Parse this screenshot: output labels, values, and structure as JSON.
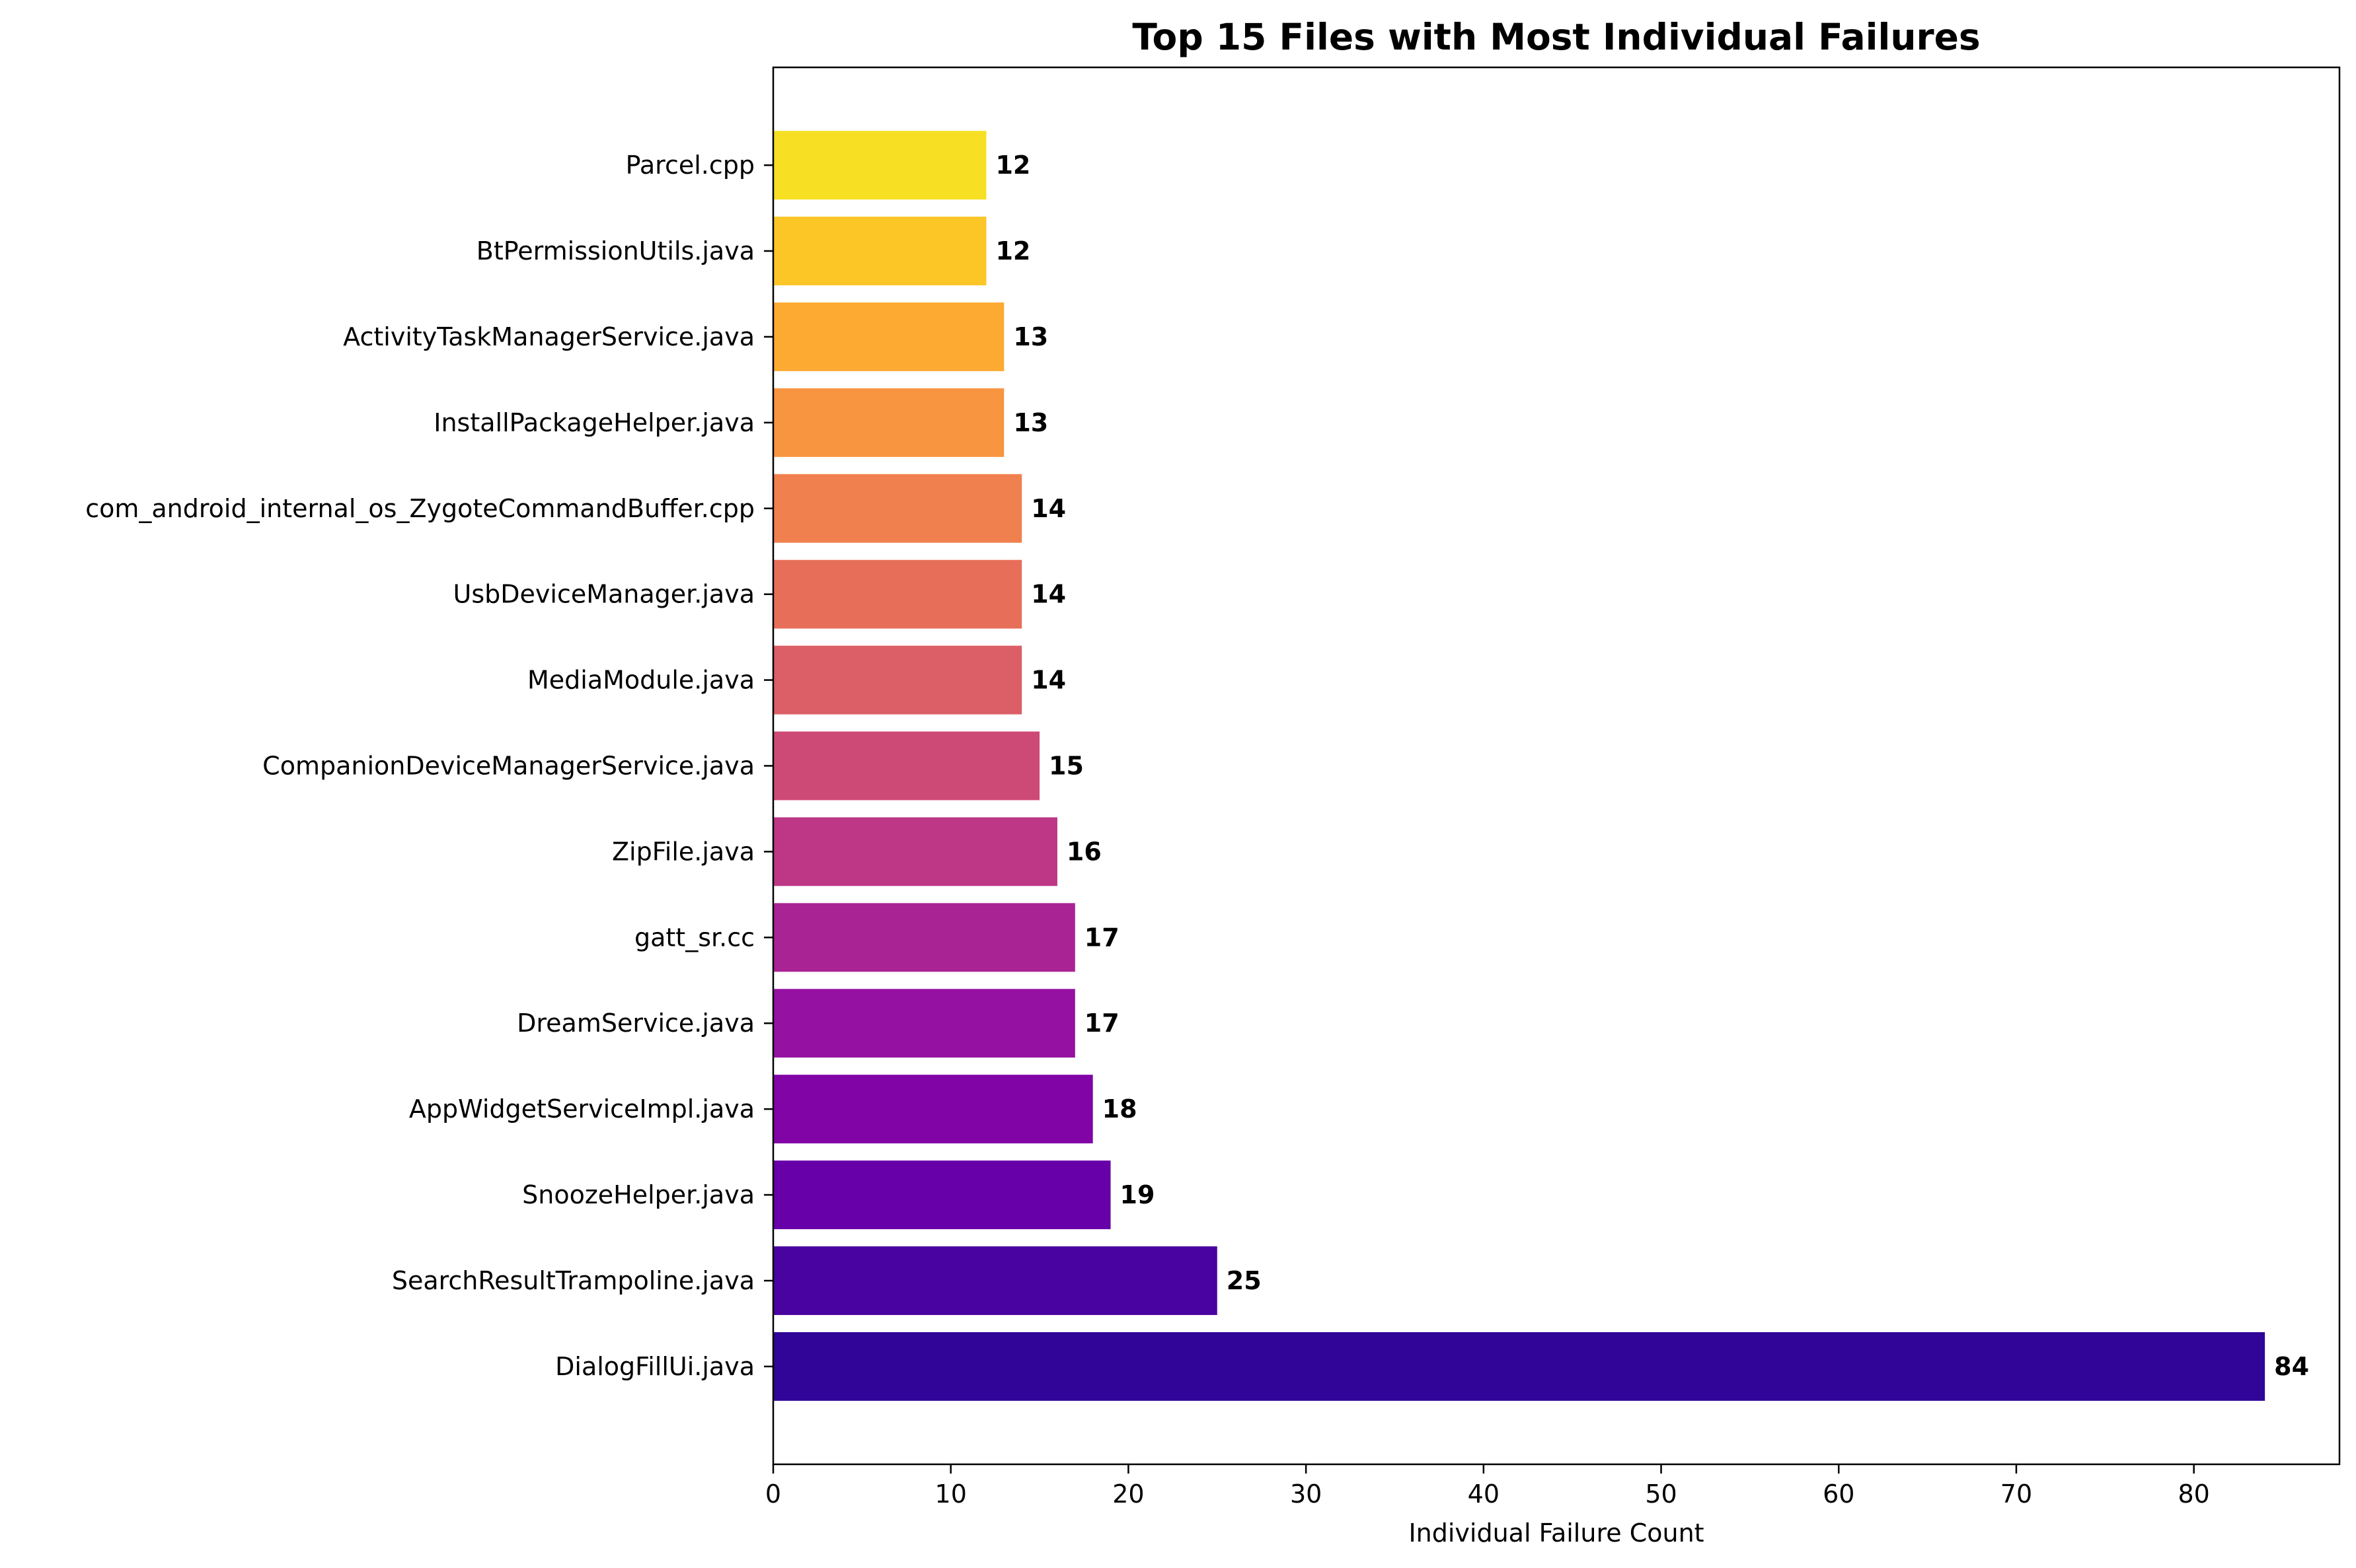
{
  "chart_data": {
    "type": "bar",
    "orientation": "horizontal",
    "title": "Top 15 Files with Most Individual Failures",
    "xlabel": "Individual Failure Count",
    "ylabel": "",
    "xlim": [
      0,
      88.2
    ],
    "xticks": [
      0,
      10,
      20,
      30,
      40,
      50,
      60,
      70,
      80
    ],
    "grid": false,
    "categories": [
      "DialogFillUi.java",
      "SearchResultTrampoline.java",
      "SnoozeHelper.java",
      "AppWidgetServiceImpl.java",
      "DreamService.java",
      "gatt_sr.cc",
      "ZipFile.java",
      "CompanionDeviceManagerService.java",
      "MediaModule.java",
      "UsbDeviceManager.java",
      "com_android_internal_os_ZygoteCommandBuffer.cpp",
      "InstallPackageHelper.java",
      "ActivityTaskManagerService.java",
      "BtPermissionUtils.java",
      "Parcel.cpp"
    ],
    "values": [
      84,
      25,
      19,
      18,
      17,
      17,
      16,
      15,
      14,
      14,
      14,
      13,
      13,
      12,
      12
    ],
    "colors": [
      "#300597",
      "#4903a0",
      "#6700a8",
      "#8104a7",
      "#9511a1",
      "#aa2395",
      "#bd3786",
      "#ce4a76",
      "#dc5e67",
      "#e76f5a",
      "#f0804e",
      "#f89540",
      "#fdaa32",
      "#fdc627",
      "#f7e024"
    ]
  }
}
